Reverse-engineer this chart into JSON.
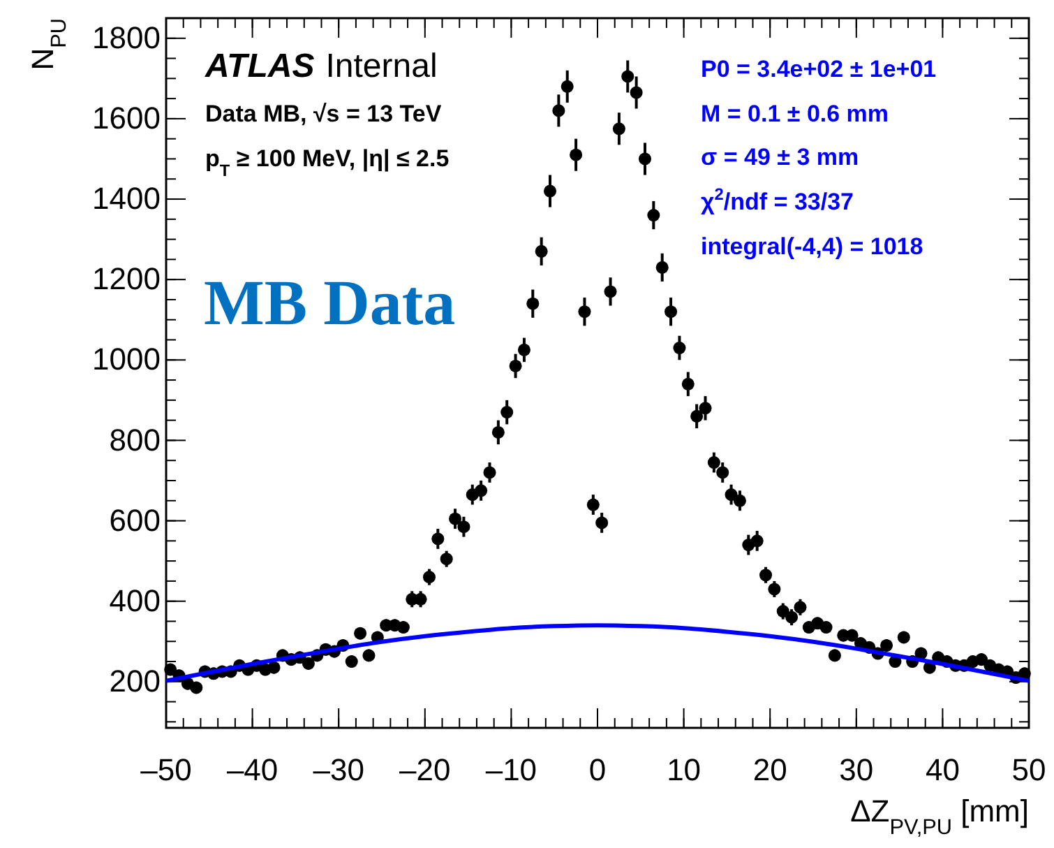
{
  "chart_data": {
    "type": "scatter",
    "xlabel": "ΔZ$_{PV,PU}$ [mm]",
    "ylabel": "N$_{PU}$",
    "xlim": [
      -50,
      50
    ],
    "ylim": [
      85,
      1850
    ],
    "xticks": [
      {
        "value": -50,
        "label": "–50"
      },
      {
        "value": -40,
        "label": "–40"
      },
      {
        "value": -30,
        "label": "–30"
      },
      {
        "value": -20,
        "label": "–20"
      },
      {
        "value": -10,
        "label": "–10"
      },
      0,
      10,
      20,
      30,
      40,
      50
    ],
    "yticks": [
      200,
      400,
      600,
      800,
      1000,
      1200,
      1400,
      1600,
      1800
    ],
    "marker": "circle",
    "grid": false,
    "annotations": [
      "ATLAS Internal",
      "Data MB, √s = 13 TeV",
      "p$_{T}$ ≥ 100 MeV, |η| ≤ 2.5",
      "P0 = 3.4e+02 ± 1e+01",
      "M = 0.1 ± 0.6 mm",
      "σ = 49 ± 3 mm",
      "χ$^{2}$/ndf = 33/37",
      "integral(-4,4) = 1018",
      "MB Data"
    ],
    "series": [
      {
        "color": "#000000",
        "x": [
          -49.5,
          -48.5,
          -47.5,
          -46.5,
          -45.5,
          -44.5,
          -43.5,
          -42.5,
          -41.5,
          -40.5,
          -39.5,
          -38.5,
          -37.5,
          -36.5,
          -35.5,
          -34.5,
          -33.5,
          -32.5,
          -31.5,
          -30.5,
          -29.5,
          -28.5,
          -27.5,
          -26.5,
          -25.5,
          -24.5,
          -23.5,
          -22.5,
          -21.5,
          -20.5,
          -19.5,
          -18.5,
          -17.5,
          -16.5,
          -15.5,
          -14.5,
          -13.5,
          -12.5,
          -11.5,
          -10.5,
          -9.5,
          -8.5,
          -7.5,
          -6.5,
          -5.5,
          -4.5,
          -3.5,
          -2.5,
          -1.5,
          -0.5,
          0.5,
          1.5,
          2.5,
          3.5,
          4.5,
          5.5,
          6.5,
          7.5,
          8.5,
          9.5,
          10.5,
          11.5,
          12.5,
          13.5,
          14.5,
          15.5,
          16.5,
          17.5,
          18.5,
          19.5,
          20.5,
          21.5,
          22.5,
          23.5,
          24.5,
          25.5,
          26.5,
          27.5,
          28.5,
          29.5,
          30.5,
          31.5,
          32.5,
          33.5,
          34.5,
          35.5,
          36.5,
          37.5,
          38.5,
          39.5,
          40.5,
          41.5,
          42.5,
          43.5,
          44.5,
          45.5,
          46.5,
          47.5,
          48.5,
          49.5
        ],
        "values": [
          230,
          215,
          195,
          185,
          225,
          220,
          225,
          225,
          240,
          230,
          240,
          230,
          235,
          265,
          255,
          260,
          245,
          265,
          280,
          275,
          290,
          250,
          320,
          265,
          310,
          340,
          340,
          335,
          405,
          405,
          460,
          555,
          505,
          605,
          585,
          665,
          675,
          720,
          820,
          870,
          985,
          1025,
          1140,
          1270,
          1420,
          1620,
          1680,
          1510,
          1120,
          640,
          595,
          1170,
          1575,
          1705,
          1665,
          1500,
          1360,
          1230,
          1120,
          1030,
          940,
          860,
          880,
          745,
          720,
          665,
          650,
          540,
          550,
          465,
          430,
          375,
          360,
          385,
          335,
          345,
          335,
          265,
          315,
          315,
          295,
          285,
          270,
          290,
          250,
          310,
          250,
          270,
          235,
          260,
          250,
          240,
          240,
          250,
          255,
          240,
          230,
          225,
          210,
          220
        ],
        "errors": [
          15,
          15,
          15,
          15,
          15,
          15,
          15,
          15,
          15,
          15,
          15,
          15,
          15,
          15,
          15,
          15,
          15,
          15,
          15,
          15,
          15,
          15,
          15,
          15,
          15,
          15,
          15,
          15,
          20,
          20,
          20,
          25,
          20,
          25,
          25,
          25,
          25,
          25,
          30,
          30,
          30,
          30,
          35,
          35,
          40,
          40,
          40,
          40,
          35,
          25,
          25,
          35,
          40,
          40,
          40,
          40,
          35,
          35,
          35,
          30,
          30,
          30,
          30,
          25,
          25,
          25,
          25,
          25,
          25,
          20,
          20,
          20,
          20,
          20,
          15,
          15,
          15,
          15,
          15,
          15,
          15,
          15,
          15,
          15,
          15,
          15,
          15,
          15,
          15,
          15,
          15,
          15,
          15,
          15,
          15,
          15,
          15,
          15,
          15,
          15
        ]
      },
      {
        "type": "line",
        "color": "#0000ff",
        "marker": "none",
        "line_style": "solid",
        "x": [
          -50,
          -45,
          -40,
          -35,
          -30,
          -25,
          -20,
          -15,
          -10,
          -5,
          0,
          5,
          10,
          15,
          20,
          25,
          30,
          35,
          40,
          45,
          50
        ],
        "values": [
          202,
          223,
          244,
          263,
          282,
          299,
          313,
          324,
          333,
          338,
          340,
          338,
          333,
          324,
          313,
          299,
          282,
          263,
          244,
          223,
          202
        ]
      }
    ]
  }
}
